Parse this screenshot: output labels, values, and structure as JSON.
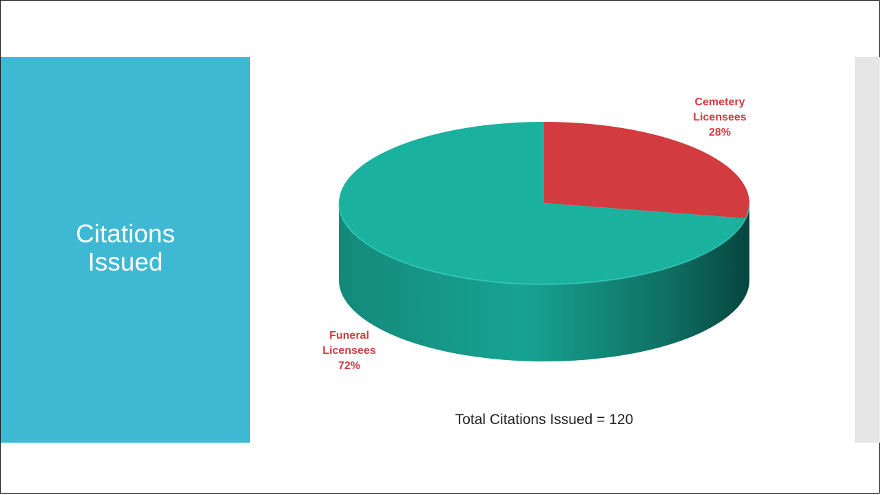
{
  "slide": {
    "title_line1": "Citations",
    "title_line2": "Issued",
    "footer_text": "Total Citations Issued = 120"
  },
  "colors": {
    "panel": "#3fb9d3",
    "cemetery": "#d23b40",
    "funeral": "#1ab29f",
    "label": "#d23b40"
  },
  "chart_data": {
    "type": "pie",
    "style": "3d",
    "title": "",
    "series": [
      {
        "name": "Cemetery Licensees",
        "label_line1": "Cemetery",
        "label_line2": "Licensees",
        "value": 28,
        "value_label": "28%"
      },
      {
        "name": "Funeral Licensees",
        "label_line1": "Funeral",
        "label_line2": "Licensees",
        "value": 72,
        "value_label": "72%"
      }
    ]
  }
}
